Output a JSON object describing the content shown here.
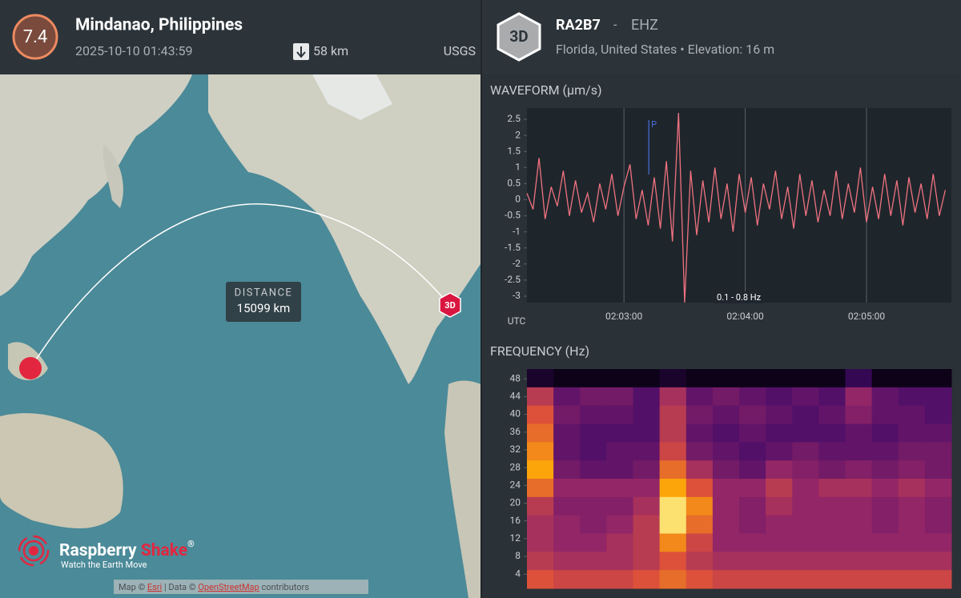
{
  "event": {
    "magnitude": "7.4",
    "place": "Mindanao, Philippines",
    "time": "2025-10-10 01:43:59",
    "depth": "58 km",
    "source": "USGS"
  },
  "map": {
    "distance_label": "DISTANCE",
    "distance": "15099 km",
    "station_badge": "3D",
    "brand": "Raspberry",
    "brand_accent": "Shake",
    "brand_mark": "®",
    "tagline": "Watch the Earth Move",
    "attribution": [
      "Map ©",
      "Esri",
      "| Data ©",
      "OpenStreetMap",
      "contributors"
    ]
  },
  "station": {
    "badge": "3D",
    "code": "RA2B7",
    "separator": "-",
    "channel": "EHZ",
    "location": "Florida, United States",
    "bullet": "•",
    "elevation": "Elevation: 16 m"
  },
  "chart_data": [
    {
      "type": "line",
      "title": "WAVEFORM (µm/s)",
      "x_label": "UTC",
      "filter": "0.1 - 0.8 Hz",
      "color": "#f0727f",
      "x": [
        132,
        135,
        138,
        141,
        144,
        147,
        150,
        153,
        156,
        159,
        162,
        165,
        168,
        171,
        174,
        177,
        180,
        183,
        186,
        189,
        192,
        195,
        198,
        201,
        204,
        207,
        210,
        213,
        216,
        219,
        222,
        225,
        228,
        231,
        234,
        237,
        240,
        243,
        246,
        249,
        252,
        255,
        258,
        261,
        264,
        267,
        270,
        273,
        276,
        279,
        282,
        285,
        288,
        291,
        294,
        297,
        300,
        303,
        306,
        309,
        312,
        315,
        318,
        321,
        324,
        327,
        330,
        333,
        336,
        339
      ],
      "values": [
        0.2,
        -0.3,
        1.3,
        -0.6,
        0.4,
        -0.2,
        0.9,
        -0.5,
        0.6,
        -0.4,
        0.2,
        -0.7,
        0.5,
        -0.3,
        0.8,
        -0.5,
        0.4,
        1.1,
        -0.6,
        0.3,
        -0.8,
        0.7,
        -0.9,
        1.2,
        -1.3,
        2.7,
        -3.2,
        0.9,
        -1.1,
        0.6,
        -0.7,
        1.0,
        -0.6,
        0.5,
        -1.0,
        0.8,
        -0.4,
        0.7,
        -0.8,
        0.5,
        -0.3,
        0.9,
        -0.6,
        0.4,
        -0.9,
        0.8,
        -0.5,
        0.6,
        -0.7,
        0.3,
        -0.5,
        0.9,
        -0.6,
        0.5,
        -0.4,
        1.0,
        -0.7,
        0.4,
        -0.6,
        0.8,
        -0.5,
        0.6,
        -0.8,
        0.7,
        -0.4,
        0.5,
        -0.6,
        0.8,
        -0.5,
        0.3
      ],
      "xlim": [
        132,
        342
      ],
      "xticks": [
        {
          "value": 180,
          "label": "02:03:00"
        },
        {
          "value": 240,
          "label": "02:04:00"
        },
        {
          "value": 300,
          "label": "02:05:00"
        }
      ],
      "ylim": [
        -3.2,
        2.85
      ],
      "yticks": [
        2.5,
        2,
        1.5,
        1,
        0.5,
        0,
        -0.5,
        -1,
        -1.5,
        -2,
        -2.5,
        -3
      ],
      "grid": "x",
      "annotations": [
        {
          "text": "P",
          "x": 192.3
        }
      ]
    },
    {
      "type": "heatmap",
      "title": "FREQUENCY (Hz)",
      "colormap": "inferno",
      "xlim": [
        132,
        342
      ],
      "ylim": [
        0.8,
        50.2
      ],
      "yticks": [
        48,
        44,
        40,
        36,
        32,
        28,
        24,
        20,
        16,
        12,
        8,
        4
      ],
      "z": [
        [
          0.1,
          0.05,
          0.05,
          0.05,
          0.05,
          0.1,
          0.05,
          0.05,
          0.05,
          0.05,
          0.05,
          0.05,
          0.2,
          0.05,
          0.05,
          0.05
        ],
        [
          0.6,
          0.35,
          0.4,
          0.4,
          0.3,
          0.55,
          0.35,
          0.4,
          0.35,
          0.3,
          0.35,
          0.3,
          0.5,
          0.35,
          0.3,
          0.3
        ],
        [
          0.7,
          0.4,
          0.35,
          0.35,
          0.3,
          0.6,
          0.4,
          0.35,
          0.4,
          0.35,
          0.3,
          0.35,
          0.45,
          0.35,
          0.35,
          0.3
        ],
        [
          0.75,
          0.35,
          0.3,
          0.3,
          0.3,
          0.6,
          0.35,
          0.3,
          0.35,
          0.3,
          0.3,
          0.3,
          0.35,
          0.3,
          0.35,
          0.35
        ],
        [
          0.8,
          0.35,
          0.3,
          0.35,
          0.35,
          0.65,
          0.4,
          0.35,
          0.3,
          0.35,
          0.4,
          0.35,
          0.35,
          0.35,
          0.4,
          0.4
        ],
        [
          0.85,
          0.4,
          0.35,
          0.35,
          0.4,
          0.75,
          0.55,
          0.4,
          0.35,
          0.5,
          0.45,
          0.4,
          0.45,
          0.4,
          0.45,
          0.4
        ],
        [
          0.75,
          0.5,
          0.5,
          0.5,
          0.5,
          0.85,
          0.7,
          0.5,
          0.5,
          0.6,
          0.5,
          0.55,
          0.55,
          0.5,
          0.55,
          0.5
        ],
        [
          0.6,
          0.45,
          0.45,
          0.45,
          0.55,
          0.95,
          0.8,
          0.5,
          0.45,
          0.55,
          0.5,
          0.5,
          0.5,
          0.45,
          0.5,
          0.45
        ],
        [
          0.55,
          0.5,
          0.45,
          0.5,
          0.6,
          0.95,
          0.75,
          0.5,
          0.45,
          0.5,
          0.5,
          0.5,
          0.5,
          0.45,
          0.5,
          0.45
        ],
        [
          0.55,
          0.5,
          0.5,
          0.55,
          0.6,
          0.8,
          0.65,
          0.5,
          0.5,
          0.5,
          0.5,
          0.5,
          0.5,
          0.5,
          0.5,
          0.5
        ],
        [
          0.6,
          0.55,
          0.55,
          0.55,
          0.6,
          0.7,
          0.6,
          0.55,
          0.55,
          0.55,
          0.55,
          0.55,
          0.55,
          0.55,
          0.55,
          0.55
        ],
        [
          0.7,
          0.65,
          0.65,
          0.65,
          0.7,
          0.75,
          0.7,
          0.65,
          0.65,
          0.65,
          0.65,
          0.65,
          0.65,
          0.65,
          0.65,
          0.65
        ]
      ]
    }
  ]
}
